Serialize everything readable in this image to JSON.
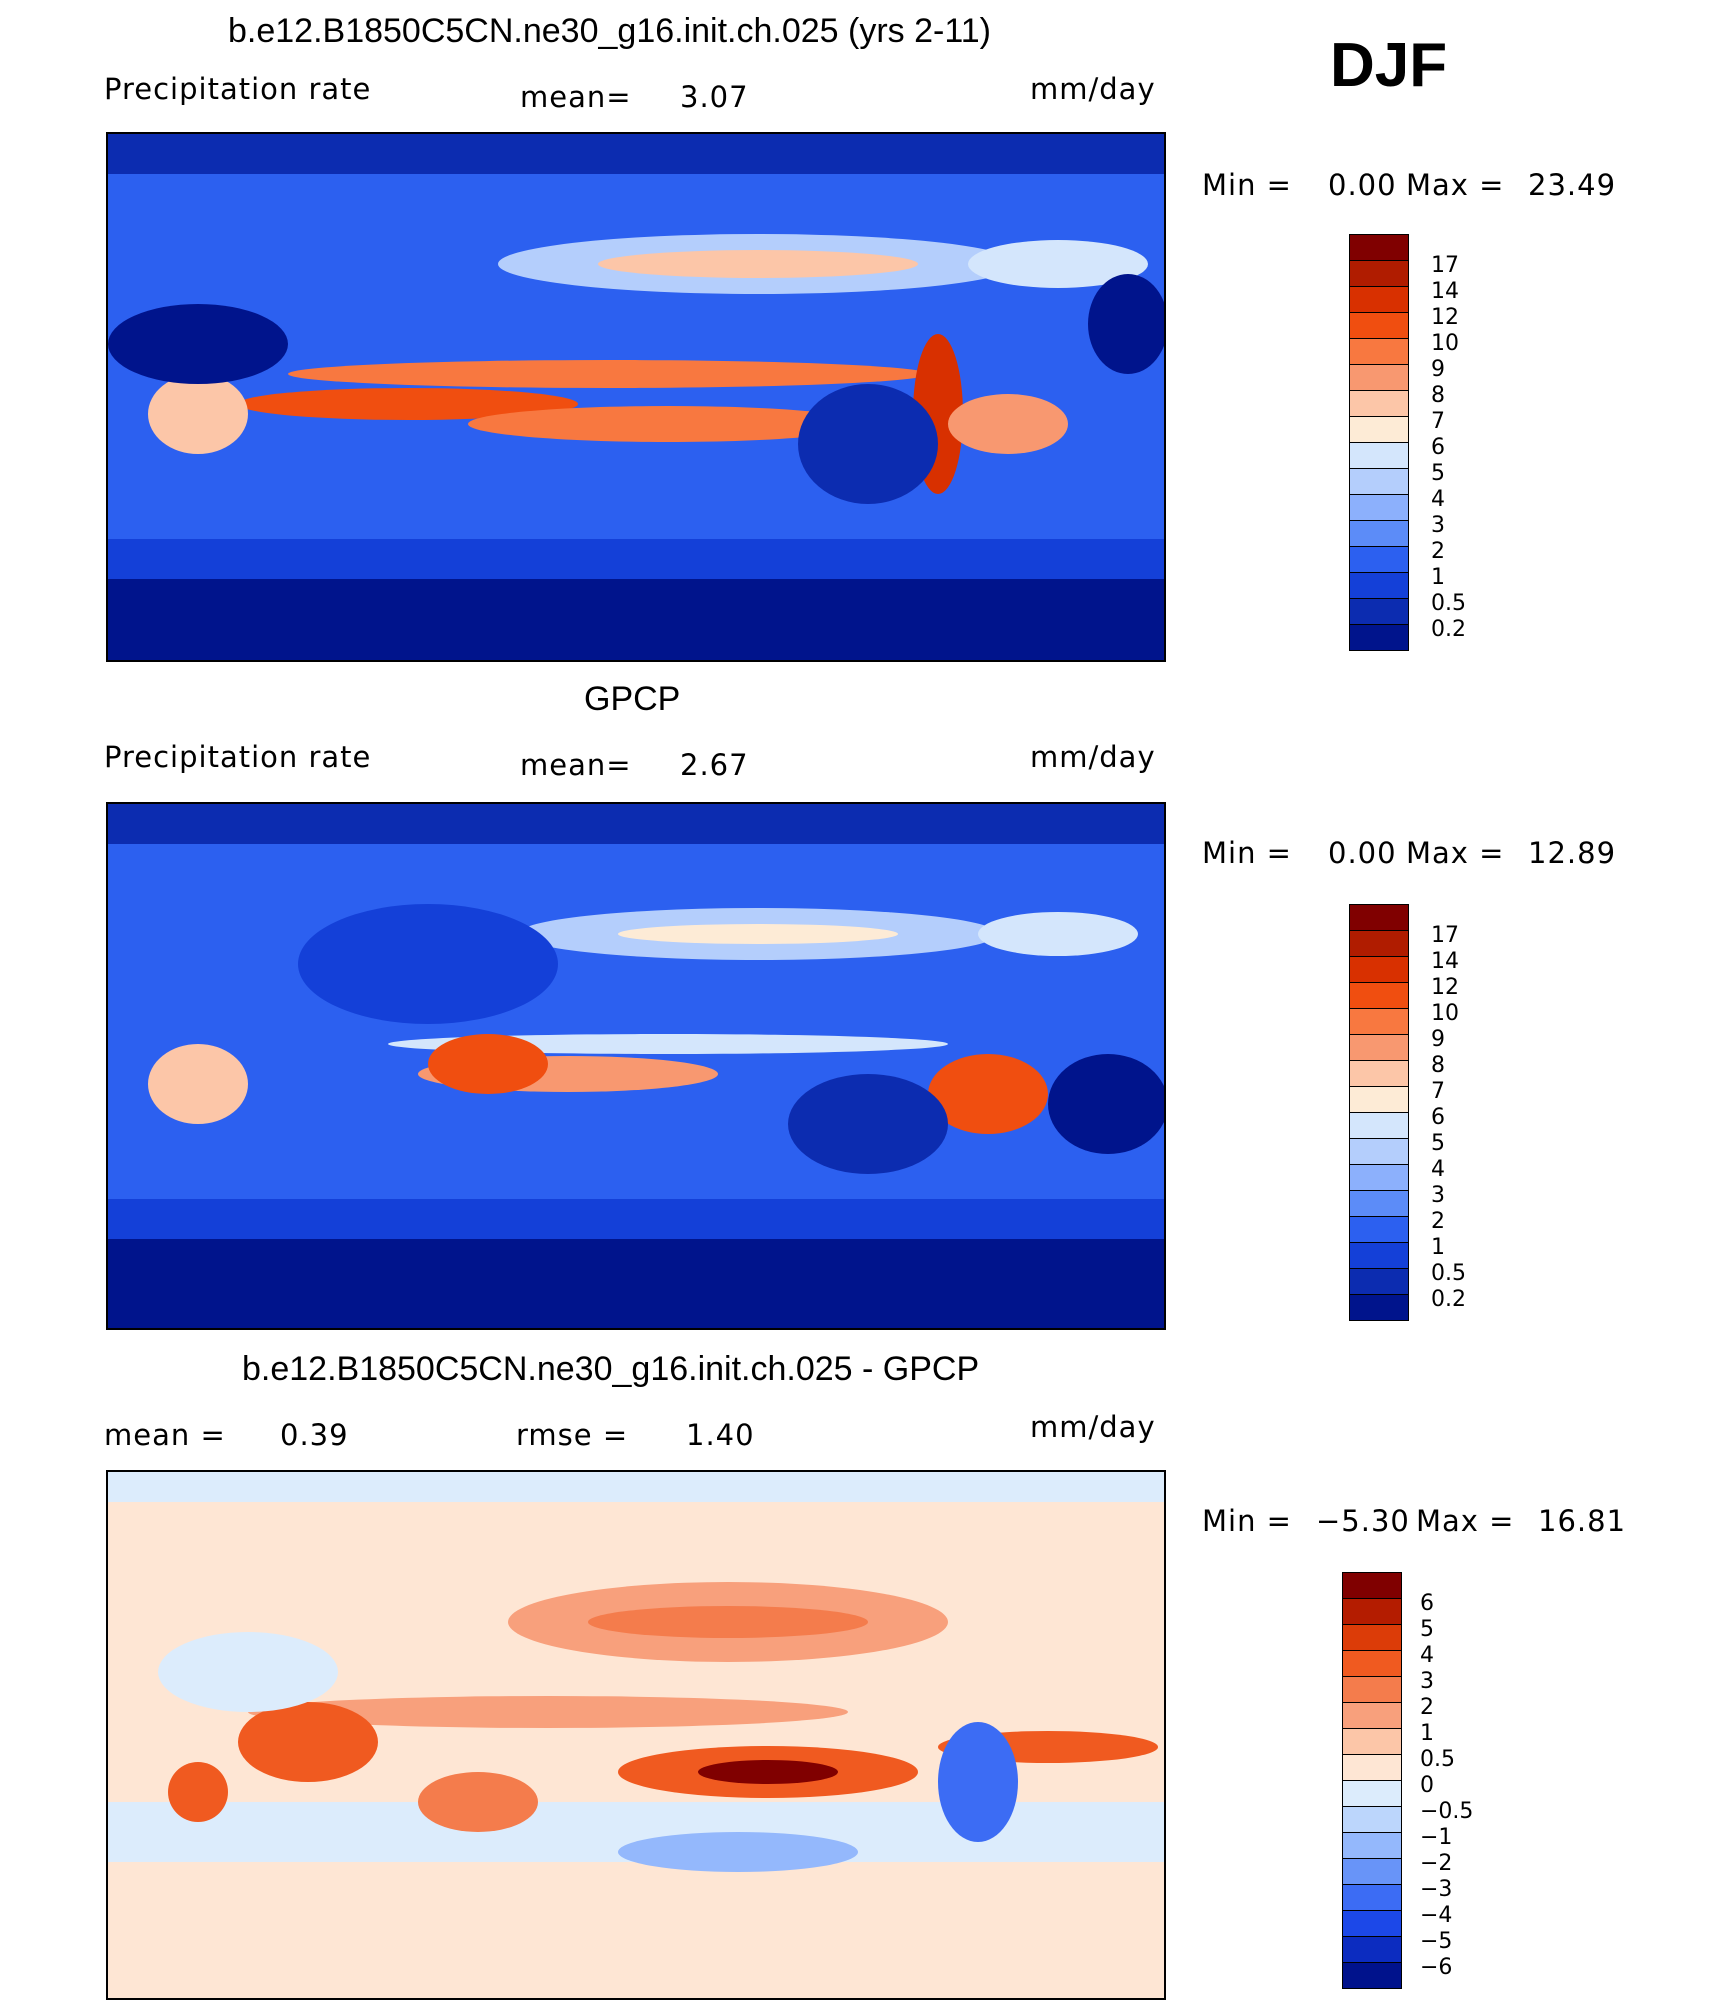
{
  "season": "DJF",
  "panels": [
    {
      "title": "b.e12.B1850C5CN.ne30_g16.init.ch.025 (yrs 2-11)",
      "left_label": "Precipitation  rate",
      "stat1_label": "mean=",
      "stat1_value": "3.07",
      "stat2_label": "",
      "stat2_value": "",
      "units": "mm/day",
      "min_label": "Min  =",
      "min_value": "0.00",
      "max_label": "Max  =",
      "max_value": "23.49",
      "levels": [
        "17",
        "14",
        "12",
        "10",
        "9",
        "8",
        "7",
        "6",
        "5",
        "4",
        "3",
        "2",
        "1",
        "0.5",
        "0.2"
      ],
      "colors": [
        "#800000",
        "#b01c00",
        "#d83000",
        "#f04e10",
        "#f87840",
        "#f89870",
        "#fcc6a8",
        "#fdebd6",
        "#d4e6fc",
        "#b4cefc",
        "#8cb0fc",
        "#5c8cf8",
        "#2c60f0",
        "#1440d8",
        "#0c2cb0",
        "#00148c"
      ]
    },
    {
      "title": "GPCP",
      "left_label": "Precipitation  rate",
      "stat1_label": "mean=",
      "stat1_value": "2.67",
      "stat2_label": "",
      "stat2_value": "",
      "units": "mm/day",
      "min_label": "Min  =",
      "min_value": "0.00",
      "max_label": "Max  =",
      "max_value": "12.89",
      "levels": [
        "17",
        "14",
        "12",
        "10",
        "9",
        "8",
        "7",
        "6",
        "5",
        "4",
        "3",
        "2",
        "1",
        "0.5",
        "0.2"
      ],
      "colors": [
        "#800000",
        "#b01c00",
        "#d83000",
        "#f04e10",
        "#f87840",
        "#f89870",
        "#fcc6a8",
        "#fdebd6",
        "#d4e6fc",
        "#b4cefc",
        "#8cb0fc",
        "#5c8cf8",
        "#2c60f0",
        "#1440d8",
        "#0c2cb0",
        "#00148c"
      ]
    },
    {
      "title": "b.e12.B1850C5CN.ne30_g16.init.ch.025 - GPCP",
      "left_label": "mean  =",
      "left_value": "0.39",
      "stat1_label": "rmse  =",
      "stat1_value": "1.40",
      "units": "mm/day",
      "min_label": "Min  =",
      "min_value": "−5.30",
      "max_label": "Max  =",
      "max_value": "16.81",
      "levels": [
        "6",
        "5",
        "4",
        "3",
        "2",
        "1",
        "0.5",
        "0",
        "−0.5",
        "−1",
        "−2",
        "−3",
        "−4",
        "−5",
        "−6"
      ],
      "colors": [
        "#800000",
        "#b41c00",
        "#dc3c08",
        "#f05a20",
        "#f47c4c",
        "#f8a07c",
        "#fcc6a8",
        "#fee6d4",
        "#dcecfc",
        "#bcd6fc",
        "#94b8fc",
        "#6894f8",
        "#3c6cf4",
        "#1c48e8",
        "#0c2cc0",
        "#00128c"
      ]
    }
  ]
}
